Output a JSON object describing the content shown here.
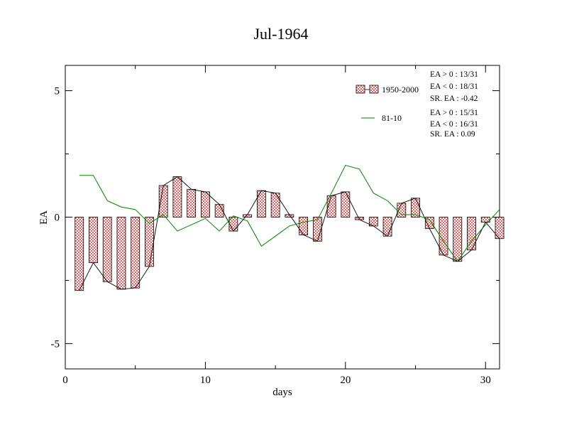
{
  "chart_data": {
    "type": "bar",
    "title": "Jul-1964",
    "xlabel": "days",
    "ylabel": "EA",
    "xlim": [
      0,
      31
    ],
    "ylim": [
      -6,
      6
    ],
    "xticks": [
      0,
      10,
      20,
      30
    ],
    "yticks": [
      -5,
      0,
      5
    ],
    "x": [
      1,
      2,
      3,
      4,
      5,
      6,
      7,
      8,
      9,
      10,
      11,
      12,
      13,
      14,
      15,
      16,
      17,
      18,
      19,
      20,
      21,
      22,
      23,
      24,
      25,
      26,
      27,
      28,
      29,
      30,
      31
    ],
    "series": [
      {
        "name": "1950-2000",
        "kind": "bar+line",
        "color": "#e06666",
        "line_color": "#000000",
        "values": [
          -2.9,
          -1.8,
          -2.55,
          -2.85,
          -2.8,
          -1.95,
          1.25,
          1.6,
          1.1,
          1.0,
          0.5,
          -0.55,
          0.1,
          1.05,
          0.95,
          0.1,
          -0.7,
          -0.95,
          0.85,
          1.0,
          -0.1,
          -0.35,
          -0.75,
          0.55,
          0.75,
          -0.45,
          -1.5,
          -1.75,
          -1.3,
          -0.2,
          -0.85
        ]
      },
      {
        "name": "81-10",
        "kind": "line",
        "color": "#008000",
        "values": [
          1.65,
          1.65,
          0.65,
          0.4,
          0.3,
          -0.25,
          0.1,
          -0.55,
          -0.3,
          -0.05,
          -0.55,
          0.05,
          -0.15,
          -1.15,
          -0.75,
          -0.35,
          -0.2,
          -0.1,
          0.95,
          2.05,
          1.9,
          0.95,
          0.65,
          0.1,
          0.1,
          -0.1,
          -0.95,
          -1.75,
          -0.95,
          -0.3,
          0.3
        ]
      }
    ],
    "stats": [
      [
        "EA > 0 : 13/31",
        "EA < 0 : 18/31",
        "SR. EA : -0.42"
      ],
      [
        "EA > 0 : 15/31",
        "EA < 0 : 16/31",
        "SR. EA :  0.09"
      ]
    ],
    "legend_position": "top-right",
    "grid": false
  }
}
